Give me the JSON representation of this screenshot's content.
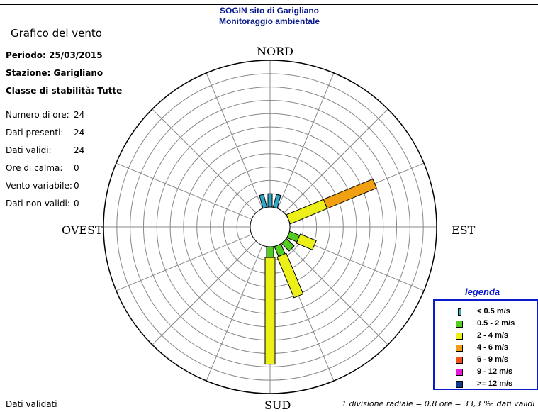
{
  "header": {
    "title_line1": "SOGIN sito di Garigliano",
    "title_line2": "Monitoraggio ambientale"
  },
  "panel": {
    "title": "Grafico del vento",
    "periodo": "Periodo: 25/03/2015",
    "stazione": "Stazione: Garigliano",
    "classe": "Classe di stabilità: Tutte",
    "stats": [
      {
        "label": "Numero di ore:",
        "value": "24"
      },
      {
        "label": "Dati presenti:",
        "value": "24"
      },
      {
        "label": "Dati validi:",
        "value": "24"
      },
      {
        "label": "Ore di calma:",
        "value": "0"
      },
      {
        "label": "Vento variabile:",
        "value": "0"
      },
      {
        "label": "Dati non validi:",
        "value": "0"
      }
    ]
  },
  "directions": {
    "n": "NORD",
    "s": "SUD",
    "e": "EST",
    "w": "OVEST"
  },
  "legend": {
    "title": "legenda",
    "items": [
      {
        "label": "< 0.5 m/s",
        "color": "#2fa7c8",
        "narrow": true
      },
      {
        "label": "0.5 - 2 m/s",
        "color": "#55cc22"
      },
      {
        "label": "2 - 4 m/s",
        "color": "#ecf018"
      },
      {
        "label": "4 - 6 m/s",
        "color": "#f0a010"
      },
      {
        "label": "6 - 9 m/s",
        "color": "#f05018"
      },
      {
        "label": "9 - 12 m/s",
        "color": "#e818d8"
      },
      {
        "label": ">= 12 m/s",
        "color": "#103a90"
      }
    ]
  },
  "footer": {
    "left": "Dati validati",
    "right": "1 divisione radiale = 0,8 ore = 33,3 ‰ dati validi"
  },
  "chart_data": {
    "type": "wind-rose",
    "title": "SOGIN sito di Garigliano",
    "subtitle": "Monitoraggio ambientale",
    "unit_per_division": "0,8 ore",
    "rings": 11,
    "calm_center": true,
    "speed_classes": [
      "< 0.5 m/s",
      "0.5 - 2 m/s",
      "2 - 4 m/s",
      "4 - 6 m/s",
      "6 - 9 m/s",
      "9 - 12 m/s",
      ">= 12 m/s"
    ],
    "sectors": [
      {
        "direction_deg": 0,
        "segments": [
          1.0
        ]
      },
      {
        "direction_deg": -15,
        "segments": [
          1.0
        ]
      },
      {
        "direction_deg": 15,
        "segments": [
          1.0
        ]
      },
      {
        "direction_deg": 67.5,
        "segments": [
          0,
          0,
          3.0,
          4.0
        ]
      },
      {
        "direction_deg": 112.5,
        "segments": [
          0,
          0.8,
          1.3
        ]
      },
      {
        "direction_deg": 135,
        "segments": [
          0,
          0.8
        ]
      },
      {
        "direction_deg": 157.5,
        "segments": [
          0,
          0.8,
          3.3
        ]
      },
      {
        "direction_deg": 180,
        "segments": [
          0,
          0.8,
          8.0
        ]
      }
    ]
  }
}
